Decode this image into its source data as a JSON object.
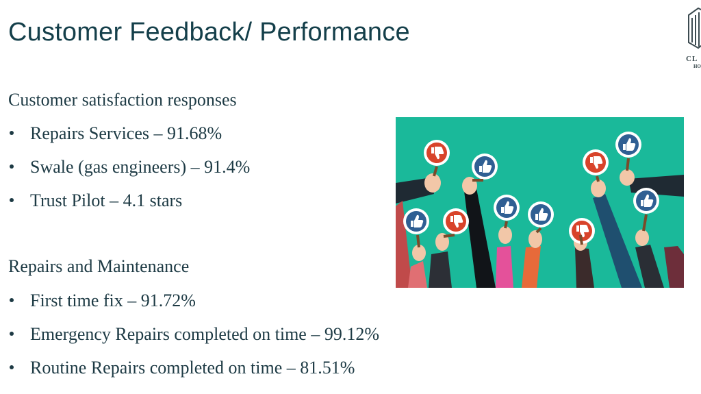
{
  "slide": {
    "title": "Customer Feedback/ Performance",
    "logo": {
      "text_line1": "CL",
      "text_line2": "HO",
      "icon": "building-logo-icon"
    },
    "sections": [
      {
        "heading": "Customer satisfaction responses",
        "items": [
          "Repairs Services – 91.68%",
          "Swale (gas engineers) – 91.4%",
          "Trust Pilot – 4.1 stars"
        ]
      },
      {
        "heading": "Repairs and Maintenance",
        "items": [
          "First time fix – 91.72%",
          "Emergency Repairs completed on time – 99.12%",
          "Routine Repairs completed on time – 81.51%"
        ]
      }
    ],
    "illustration": {
      "background": "#1ab99a",
      "like_color": "#2f5f93",
      "dislike_color": "#d8432a",
      "icons": [
        "thumbs-up-icon",
        "thumbs-down-icon"
      ]
    }
  }
}
